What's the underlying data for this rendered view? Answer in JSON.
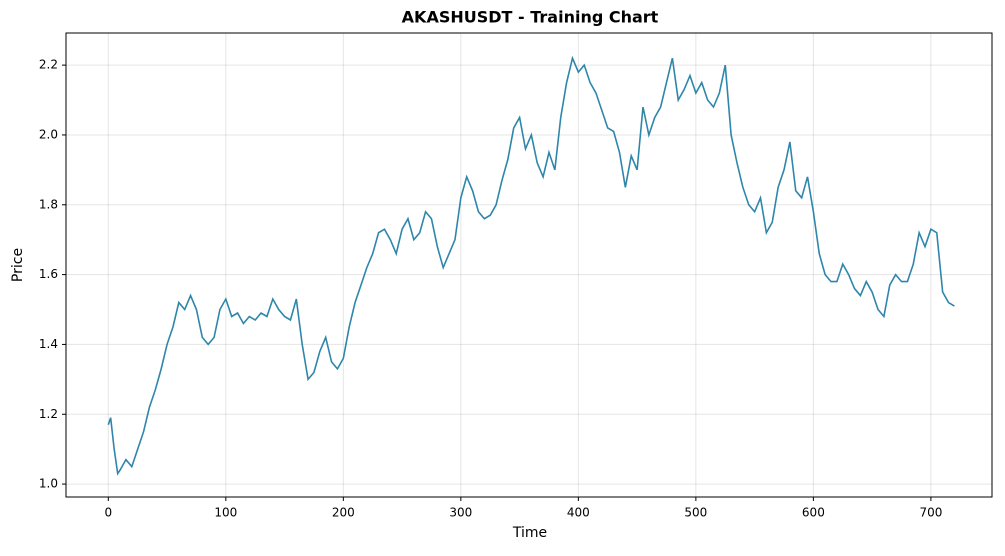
{
  "chart_data": {
    "type": "line",
    "title": "AKASHUSDT - Training Chart",
    "x_label": "Time",
    "y_label": "Price",
    "x": [
      0,
      2,
      5,
      8,
      10,
      15,
      20,
      25,
      30,
      35,
      40,
      45,
      50,
      55,
      60,
      65,
      70,
      75,
      80,
      85,
      90,
      95,
      100,
      105,
      110,
      115,
      120,
      125,
      130,
      135,
      140,
      145,
      150,
      155,
      160,
      165,
      170,
      175,
      180,
      185,
      190,
      195,
      200,
      205,
      210,
      215,
      220,
      225,
      230,
      235,
      240,
      245,
      250,
      255,
      260,
      265,
      270,
      275,
      280,
      285,
      290,
      295,
      300,
      305,
      310,
      315,
      320,
      325,
      330,
      335,
      340,
      345,
      350,
      355,
      360,
      365,
      370,
      375,
      380,
      385,
      390,
      395,
      400,
      405,
      410,
      415,
      420,
      425,
      430,
      435,
      440,
      445,
      450,
      455,
      460,
      465,
      470,
      475,
      480,
      485,
      490,
      495,
      500,
      505,
      510,
      515,
      520,
      525,
      530,
      535,
      540,
      545,
      550,
      555,
      560,
      565,
      570,
      575,
      580,
      585,
      590,
      595,
      600,
      605,
      610,
      615,
      620,
      625,
      630,
      635,
      640,
      645,
      650,
      655,
      660,
      665,
      670,
      675,
      680,
      685,
      690,
      695,
      700,
      705,
      710,
      715,
      720
    ],
    "series": [
      {
        "color": "#2e86ab",
        "values": [
          1.17,
          1.19,
          1.1,
          1.03,
          1.04,
          1.07,
          1.05,
          1.1,
          1.15,
          1.22,
          1.27,
          1.33,
          1.4,
          1.45,
          1.52,
          1.5,
          1.54,
          1.5,
          1.42,
          1.4,
          1.42,
          1.5,
          1.53,
          1.48,
          1.49,
          1.46,
          1.48,
          1.47,
          1.49,
          1.48,
          1.53,
          1.5,
          1.48,
          1.47,
          1.53,
          1.4,
          1.3,
          1.32,
          1.38,
          1.42,
          1.35,
          1.33,
          1.36,
          1.45,
          1.52,
          1.57,
          1.62,
          1.66,
          1.72,
          1.73,
          1.7,
          1.66,
          1.73,
          1.76,
          1.7,
          1.72,
          1.78,
          1.76,
          1.68,
          1.62,
          1.66,
          1.7,
          1.82,
          1.88,
          1.84,
          1.78,
          1.76,
          1.77,
          1.8,
          1.87,
          1.93,
          2.02,
          2.05,
          1.96,
          2.0,
          1.92,
          1.88,
          1.95,
          1.9,
          2.05,
          2.15,
          2.22,
          2.18,
          2.2,
          2.15,
          2.12,
          2.07,
          2.02,
          2.01,
          1.95,
          1.85,
          1.94,
          1.9,
          2.08,
          2.0,
          2.05,
          2.08,
          2.15,
          2.22,
          2.1,
          2.13,
          2.17,
          2.12,
          2.15,
          2.1,
          2.08,
          2.12,
          2.2,
          2.0,
          1.92,
          1.85,
          1.8,
          1.78,
          1.82,
          1.72,
          1.75,
          1.85,
          1.9,
          1.98,
          1.84,
          1.82,
          1.88,
          1.78,
          1.66,
          1.6,
          1.58,
          1.58,
          1.63,
          1.6,
          1.56,
          1.54,
          1.58,
          1.55,
          1.5,
          1.48,
          1.57,
          1.6,
          1.58,
          1.58,
          1.63,
          1.72,
          1.68,
          1.73,
          1.72,
          1.55,
          1.52,
          1.51
        ]
      }
    ],
    "xlim": [
      -36,
      752
    ],
    "ylim": [
      0.963,
      2.292
    ],
    "xticks": [
      0,
      100,
      200,
      300,
      400,
      500,
      600,
      700
    ],
    "yticks": [
      {
        "value": 1,
        "label": "1.0"
      },
      1.2,
      1.4,
      1.6,
      1.8,
      {
        "value": 2,
        "label": "2.0"
      },
      2.2
    ],
    "grid": true
  }
}
